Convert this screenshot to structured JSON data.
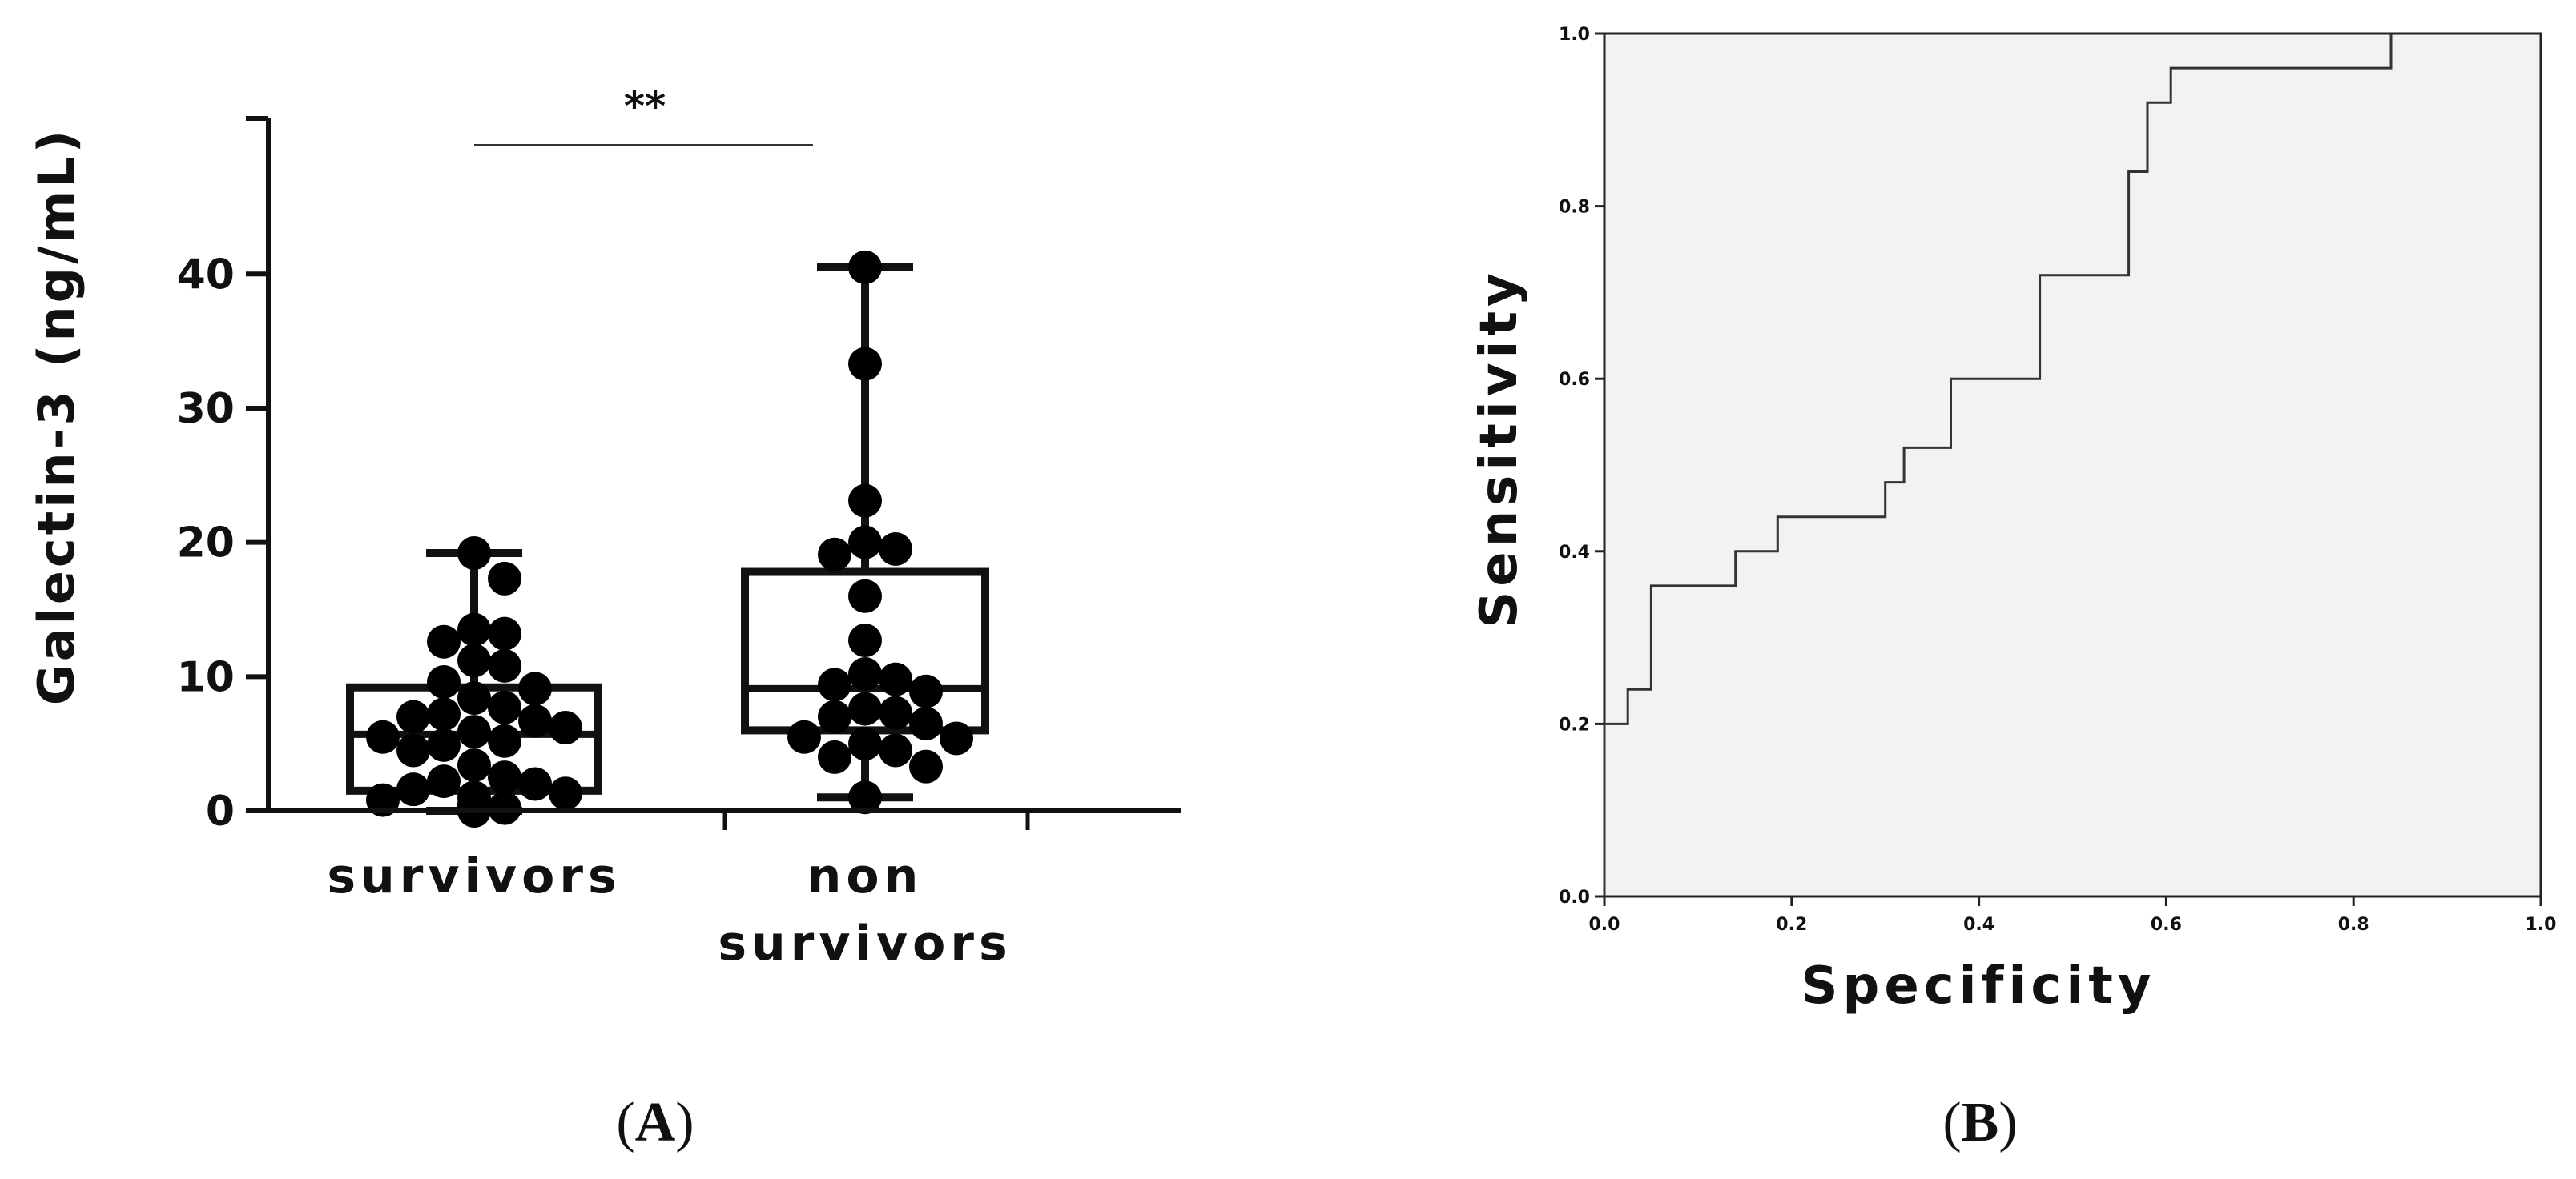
{
  "chart_data": [
    {
      "panel": "(A)",
      "type": "scatter",
      "ylabel": "Galectin-3 (ng/mL)",
      "xlabel": "",
      "ylim": [
        0,
        50
      ],
      "yticks": [
        0,
        10,
        20,
        30,
        40
      ],
      "categories": [
        {
          "lines": [
            "survivors"
          ]
        },
        {
          "lines": [
            "non",
            "survivors"
          ]
        }
      ],
      "boxes": [
        {
          "category": "survivors",
          "min": 0,
          "q1": 1.5,
          "median": 5.7,
          "q3": 9.2,
          "max": 19.2
        },
        {
          "category": "non survivors",
          "min": 1.0,
          "q1": 6.0,
          "median": 9.1,
          "q3": 17.8,
          "max": 40.5
        }
      ],
      "series": [
        {
          "category": "survivors",
          "values": [
            19.2,
            17.3,
            13.5,
            13.2,
            12.6,
            11.2,
            10.8,
            9.6,
            9.1,
            8.4,
            7.7,
            7.2,
            7.0,
            6.7,
            6.2,
            5.9,
            5.5,
            5.2,
            4.9,
            4.5,
            3.4,
            2.5,
            2.2,
            2.0,
            1.6,
            1.3,
            1.0,
            0.8,
            0.5,
            0.4,
            0.3,
            0.2,
            0.1,
            0.0,
            0.0
          ]
        },
        {
          "category": "non survivors",
          "values": [
            40.5,
            33.3,
            23.1,
            20.0,
            19.5,
            19.1,
            16.0,
            12.7,
            10.2,
            9.8,
            9.4,
            8.9,
            7.6,
            7.3,
            7.0,
            6.5,
            5.5,
            5.4,
            5.0,
            4.5,
            4.0,
            3.3,
            1.0
          ]
        }
      ],
      "annotations": [
        {
          "text": "**",
          "between": [
            "survivors",
            "non survivors"
          ]
        }
      ]
    },
    {
      "panel": "(B)",
      "type": "line",
      "xlabel": "Specificity",
      "ylabel": "Sensitivity",
      "xlim": [
        0,
        1
      ],
      "ylim": [
        0,
        1
      ],
      "xticks": [
        "0.0",
        "0.2",
        "0.4",
        "0.6",
        "0.8",
        "1.0"
      ],
      "yticks": [
        "0.0",
        "0.2",
        "0.4",
        "0.6",
        "0.8",
        "1.0"
      ],
      "background_color": "#f2f2f2",
      "line_color": "#333333",
      "points": [
        [
          0.0,
          0.0
        ],
        [
          0.0,
          0.2
        ],
        [
          0.025,
          0.2
        ],
        [
          0.025,
          0.24
        ],
        [
          0.05,
          0.24
        ],
        [
          0.05,
          0.36
        ],
        [
          0.14,
          0.36
        ],
        [
          0.14,
          0.4
        ],
        [
          0.185,
          0.4
        ],
        [
          0.185,
          0.44
        ],
        [
          0.3,
          0.44
        ],
        [
          0.3,
          0.48
        ],
        [
          0.32,
          0.48
        ],
        [
          0.32,
          0.52
        ],
        [
          0.37,
          0.52
        ],
        [
          0.37,
          0.6
        ],
        [
          0.465,
          0.6
        ],
        [
          0.465,
          0.72
        ],
        [
          0.56,
          0.72
        ],
        [
          0.56,
          0.84
        ],
        [
          0.58,
          0.84
        ],
        [
          0.58,
          0.92
        ],
        [
          0.605,
          0.92
        ],
        [
          0.605,
          0.96
        ],
        [
          0.84,
          0.96
        ],
        [
          0.84,
          1.0
        ]
      ]
    }
  ]
}
